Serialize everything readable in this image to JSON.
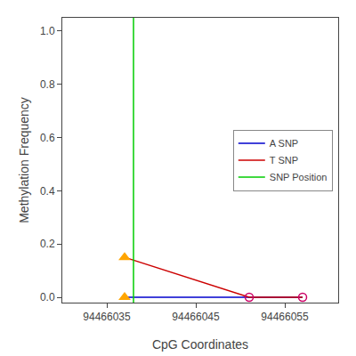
{
  "chart_data": {
    "type": "line",
    "xlabel": "CpG Coordinates",
    "ylabel": "Methylation Frequency",
    "series": [
      {
        "name": "A SNP",
        "type": "line",
        "color": "#0000cc",
        "x": [
          94466037,
          94466051,
          94466057
        ],
        "values": [
          0.0,
          0.0,
          0.0
        ]
      },
      {
        "name": "T SNP",
        "type": "line",
        "color": "#cc0000",
        "x": [
          94466037,
          94466051,
          94466057
        ],
        "values": [
          0.15,
          0.0,
          0.0
        ]
      },
      {
        "name": "SNP Position",
        "type": "vline",
        "color": "#00cc00",
        "x": [
          94466038
        ]
      },
      {
        "type": "scatter",
        "marker": "triangle",
        "color": "#FFA500",
        "x": [
          94466037,
          94466037
        ],
        "values": [
          0.15,
          0.0
        ]
      },
      {
        "type": "scatter",
        "marker": "open_circle",
        "color": "#cc0066",
        "x": [
          94466051,
          94466057
        ],
        "values": [
          0.0,
          0.0
        ]
      }
    ],
    "xlim": [
      94466030,
      94466061
    ],
    "xticks": [
      94466035,
      94466045,
      94466055
    ],
    "ylim": [
      -0.02,
      1.05
    ],
    "yticks": [
      {
        "value": 0,
        "label": "0.0"
      },
      0.2,
      0.4,
      0.6,
      0.8,
      {
        "value": 1,
        "label": "1.0"
      }
    ],
    "grid": false,
    "legend": "center right"
  }
}
